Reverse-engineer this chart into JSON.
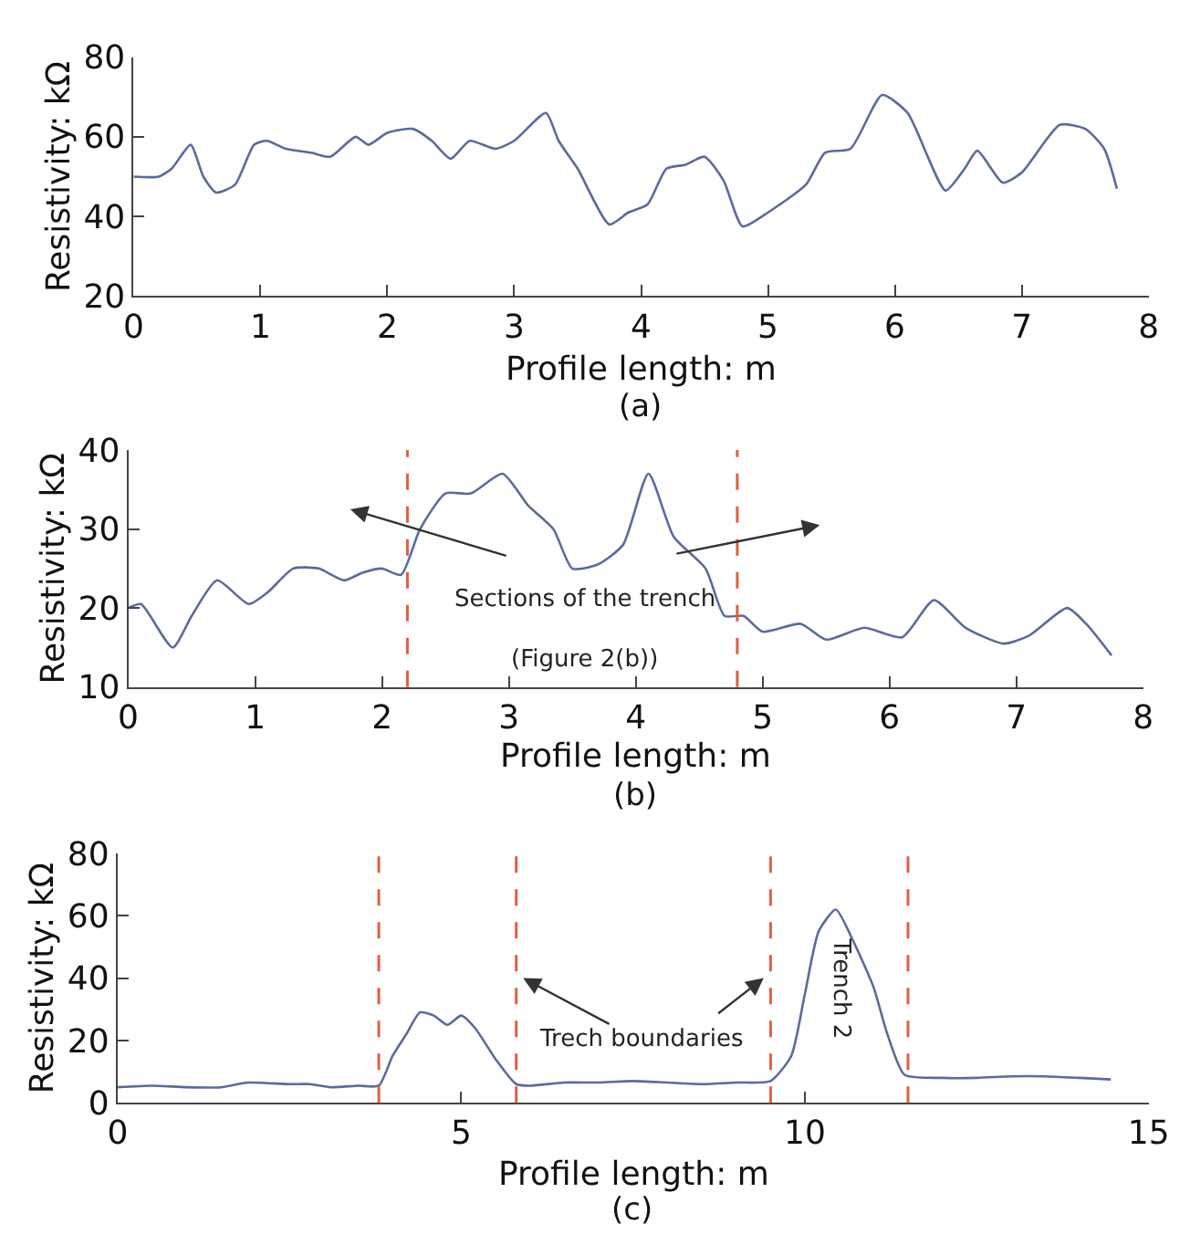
{
  "chart_data": [
    {
      "type": "line",
      "xlabel": "Profile length: m",
      "ylabel": "Resistivity: kΩ",
      "xlim": [
        0,
        8
      ],
      "xticks": [
        0,
        1,
        2,
        3,
        4,
        5,
        6,
        7,
        8
      ],
      "ylim": [
        20,
        80
      ],
      "yticks": [
        20,
        40,
        60,
        80
      ],
      "x": [
        0,
        0.2,
        0.3,
        0.45,
        0.55,
        0.65,
        0.8,
        0.95,
        1.05,
        1.2,
        1.4,
        1.55,
        1.75,
        1.85,
        2.0,
        2.2,
        2.35,
        2.5,
        2.65,
        2.85,
        3.0,
        3.25,
        3.35,
        3.5,
        3.75,
        3.9,
        4.05,
        4.2,
        4.35,
        4.5,
        4.65,
        4.8,
        5.0,
        5.3,
        5.45,
        5.65,
        5.9,
        6.1,
        6.4,
        6.55,
        6.65,
        6.85,
        7.0,
        7.3,
        7.5,
        7.65,
        7.75
      ],
      "series": [
        {
          "color": "#5b6a9e",
          "values": [
            50,
            50,
            52,
            58,
            50,
            46,
            48,
            58,
            59,
            57,
            56,
            55,
            60,
            58,
            61,
            62,
            59,
            54.5,
            59,
            57,
            59,
            66,
            59,
            52,
            38,
            41,
            43,
            52,
            53,
            55,
            49,
            37.5,
            41,
            48,
            56,
            57,
            70.5,
            66,
            46.5,
            52,
            56.5,
            48.5,
            51,
            63,
            62,
            57,
            47
          ]
        }
      ],
      "annotations": [
        "(a)"
      ]
    },
    {
      "type": "line",
      "xlabel": "Profile length: m",
      "ylabel": "Resistivity: kΩ",
      "xlim": [
        0,
        8
      ],
      "xticks": [
        0,
        1,
        2,
        3,
        4,
        5,
        6,
        7,
        8
      ],
      "ylim": [
        10,
        40
      ],
      "yticks": [
        10,
        20,
        30,
        40
      ],
      "x": [
        0,
        0.1,
        0.35,
        0.5,
        0.7,
        0.95,
        1.1,
        1.3,
        1.5,
        1.7,
        1.85,
        2.0,
        2.15,
        2.3,
        2.5,
        2.7,
        2.95,
        3.15,
        3.35,
        3.5,
        3.7,
        3.9,
        4.1,
        4.3,
        4.55,
        4.7,
        4.85,
        5.0,
        5.3,
        5.5,
        5.8,
        6.1,
        6.35,
        6.6,
        6.9,
        7.1,
        7.4,
        7.55,
        7.75
      ],
      "series": [
        {
          "color": "#5b6a9e",
          "values": [
            20,
            20.5,
            15,
            19,
            23.5,
            20.5,
            22,
            25,
            25,
            23.5,
            24.5,
            25,
            24.2,
            30,
            34.5,
            34.5,
            37,
            33,
            30,
            25,
            25.5,
            28,
            37,
            29,
            25,
            19,
            19,
            17,
            18,
            16,
            17.5,
            16.3,
            21,
            17.5,
            15.5,
            16.5,
            20,
            18,
            14
          ]
        }
      ],
      "ref_lines": [
        {
          "axis": "x",
          "value": 2.2,
          "color": "#e06040",
          "line_style": "dashed"
        },
        {
          "axis": "x",
          "value": 4.8,
          "color": "#e06040",
          "line_style": "dashed"
        }
      ],
      "annotations": [
        "Sections of the trench",
        "(Figure 2(b))",
        "(b)"
      ]
    },
    {
      "type": "line",
      "xlabel": "Profile length: m",
      "ylabel": "Resistivity: kΩ",
      "xlim": [
        0,
        15
      ],
      "xticks": [
        0,
        5,
        10,
        15
      ],
      "ylim": [
        0,
        80
      ],
      "yticks": [
        0,
        20,
        40,
        60,
        80
      ],
      "x": [
        0,
        0.5,
        1,
        1.5,
        1.9,
        2.5,
        2.8,
        3.1,
        3.5,
        3.8,
        4.0,
        4.2,
        4.4,
        4.6,
        4.8,
        5.0,
        5.2,
        5.5,
        5.8,
        6.0,
        6.5,
        7.0,
        7.5,
        8.0,
        8.5,
        9.0,
        9.5,
        9.8,
        10.0,
        10.2,
        10.45,
        10.7,
        11.0,
        11.2,
        11.45,
        12,
        12.5,
        13,
        13.5,
        14,
        14.45
      ],
      "series": [
        {
          "color": "#5b6a9e",
          "values": [
            5,
            5.5,
            5,
            5,
            6.5,
            6,
            6,
            5,
            5.5,
            5.5,
            15,
            22,
            29,
            28,
            25,
            28,
            24,
            14,
            6,
            5.5,
            6.5,
            6.5,
            7,
            6.5,
            6,
            6.5,
            7,
            15,
            35,
            55,
            62,
            52,
            37,
            22,
            9,
            8,
            8,
            8.5,
            8.5,
            8,
            7.5
          ]
        }
      ],
      "ref_lines": [
        {
          "axis": "x",
          "value": 3.8,
          "color": "#e06040",
          "line_style": "dashed"
        },
        {
          "axis": "x",
          "value": 5.8,
          "color": "#e06040",
          "line_style": "dashed"
        },
        {
          "axis": "x",
          "value": 9.5,
          "color": "#e06040",
          "line_style": "dashed"
        },
        {
          "axis": "x",
          "value": 11.5,
          "color": "#e06040",
          "line_style": "dashed"
        }
      ],
      "annotations": [
        {
          "text": "Trech boundaries",
          "x": 5.9,
          "y": 40
        },
        "Trench 2",
        "(c)"
      ]
    }
  ]
}
